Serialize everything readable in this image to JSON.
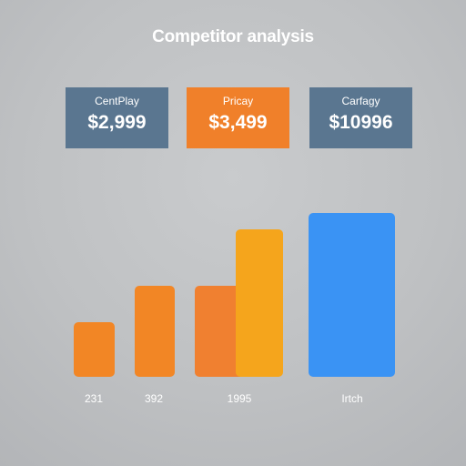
{
  "title": "Competitor analysis",
  "cards": [
    {
      "label": "CentPlay",
      "value": "$2,999",
      "color": "#5a7690"
    },
    {
      "label": "Pricay",
      "value": "$3,499",
      "color": "#f0802a"
    },
    {
      "label": "Carfagy",
      "value": "$10996",
      "color": "#5a7690"
    }
  ],
  "chart_data": {
    "type": "bar",
    "categories": [
      "231",
      "392",
      "1995",
      "Irtch"
    ],
    "bars": [
      {
        "category": "231",
        "value": 60,
        "color": "#f28625"
      },
      {
        "category": "392",
        "value": 100,
        "color": "#f28625"
      },
      {
        "category": "1995",
        "value": 100,
        "color": "#f08030"
      },
      {
        "category": "1995",
        "value": 162,
        "color": "#f5a51c"
      },
      {
        "category": "Irtch",
        "value": 180,
        "color": "#3a93f4"
      }
    ],
    "xlabel": "",
    "ylabel": "",
    "ylim": [
      0,
      180
    ],
    "grid": false,
    "legend": "none"
  }
}
